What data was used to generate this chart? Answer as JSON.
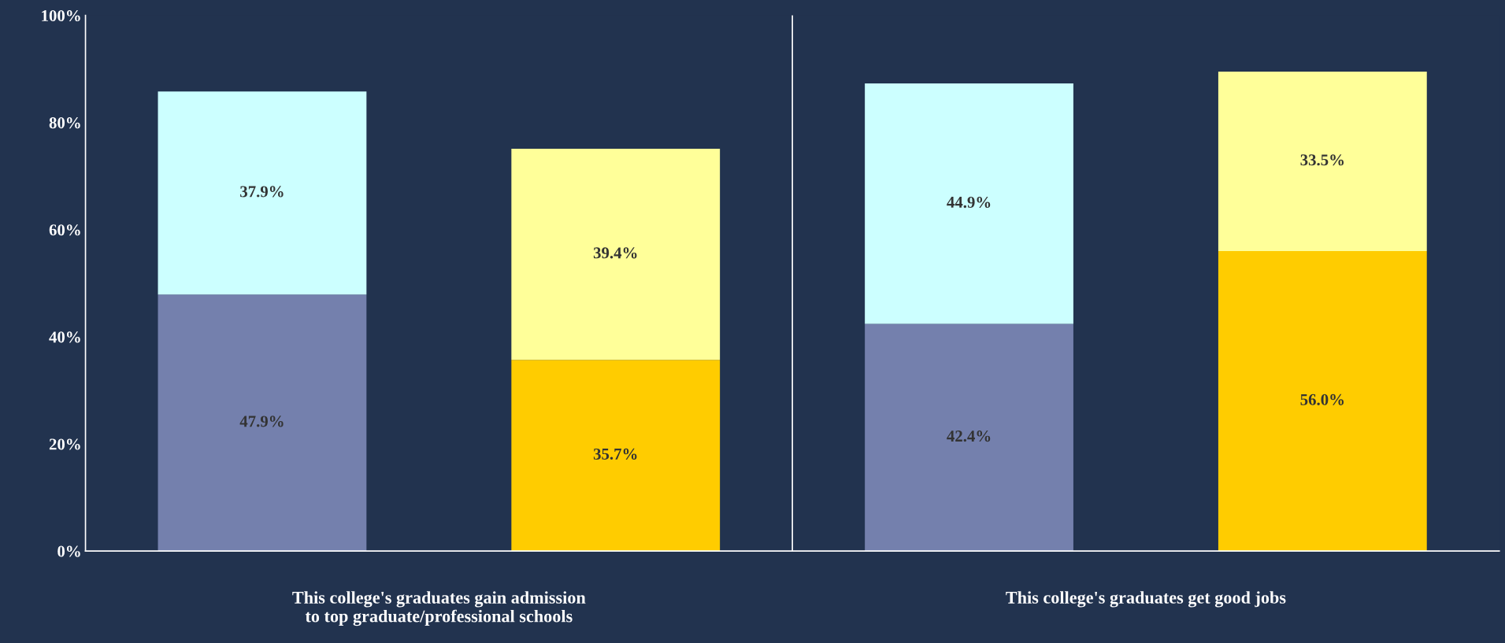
{
  "chart_data": {
    "type": "bar",
    "stacked": true,
    "categories": [
      null,
      null,
      null,
      null
    ],
    "ylim": [
      0,
      100
    ],
    "yticks": [
      {
        "value": 0,
        "label": "0%"
      },
      {
        "value": 20,
        "label": "20%"
      },
      {
        "value": 40,
        "label": "40%"
      },
      {
        "value": 60,
        "label": "60%"
      },
      {
        "value": 80,
        "label": "80%"
      },
      {
        "value": 100,
        "label": "100%"
      }
    ],
    "annotations": [
      "This college's graduates gain admission to top graduate/professional schools",
      "This college's graduates get good jobs"
    ],
    "series": [
      {
        "colors": [
          "#7480ad",
          "#ffcc00",
          "#7480ad",
          "#ffcc00"
        ],
        "values": [
          47.9,
          35.7,
          42.4,
          56.0
        ],
        "value_labels": [
          "47.9%",
          "35.7%",
          "42.4%",
          "56.0%"
        ]
      },
      {
        "colors": [
          "#ccffff",
          "#ffff99",
          "#ccffff",
          "#ffff99"
        ],
        "values": [
          37.9,
          39.4,
          44.9,
          33.5
        ],
        "value_labels": [
          "37.9%",
          "39.4%",
          "44.9%",
          "33.5%"
        ]
      }
    ]
  }
}
